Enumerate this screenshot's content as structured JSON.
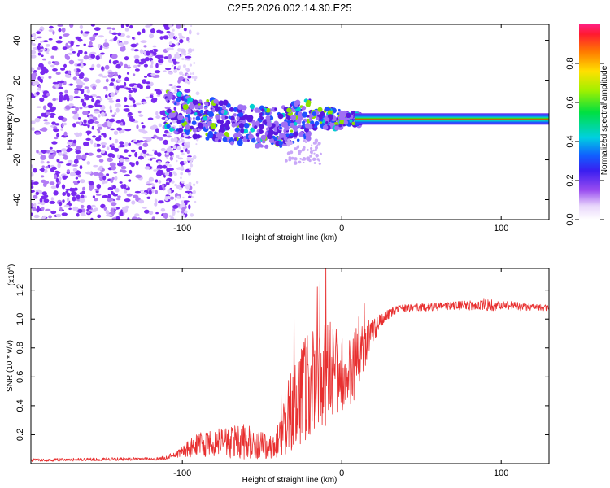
{
  "figure": {
    "title": "C2E5.2026.002.14.30.E25",
    "colors": {
      "spectrogram_base": "#7a29f0",
      "snr_line": "#e83030"
    }
  },
  "chart_data": [
    {
      "type": "heatmap",
      "title": "C2E5.2026.002.14.30.E25",
      "xlabel": "Height of straight line (km)",
      "ylabel": "Frequency (Hz)",
      "xlim": [
        -195,
        130
      ],
      "ylim": [
        -50,
        48
      ],
      "x_ticks": [
        -100,
        0,
        100
      ],
      "y_ticks": [
        -40,
        -20,
        0,
        20,
        40
      ],
      "colorbar": {
        "label": "Normalized spectral amplitude",
        "range": [
          0,
          1
        ],
        "ticks": [
          "0.0",
          "0.2",
          "0.4",
          "0.6",
          "0.8"
        ],
        "tick_values": [
          0,
          0.2,
          0.4,
          0.6,
          0.8
        ]
      },
      "features": {
        "noise_region_x": [
          -195,
          -105
        ],
        "signal_track": [
          {
            "x": -110,
            "y": 5
          },
          {
            "x": -95,
            "y": 2
          },
          {
            "x": -80,
            "y": 0
          },
          {
            "x": -60,
            "y": -3
          },
          {
            "x": -40,
            "y": -4
          },
          {
            "x": -25,
            "y": 0
          },
          {
            "x": -10,
            "y": 1
          },
          {
            "x": 0,
            "y": 0.5
          },
          {
            "x": 10,
            "y": 0.5
          },
          {
            "x": 130,
            "y": 0.5
          }
        ]
      }
    },
    {
      "type": "line",
      "xlabel": "Height of straight line (km)",
      "ylabel": "SNR (10 * v/v)",
      "y_scale_label": "(x10",
      "y_scale_exponent": "4",
      "y_scale_suffix": ")",
      "xlim": [
        -195,
        130
      ],
      "ylim": [
        0,
        1.35
      ],
      "x_ticks": [
        -100,
        0,
        100
      ],
      "y_ticks": [
        "0.2",
        "0.4",
        "0.6",
        "0.8",
        "1.0",
        "1.2"
      ],
      "y_tick_values": [
        0.2,
        0.4,
        0.6,
        0.8,
        1.0,
        1.2
      ],
      "envelope": [
        {
          "x": -195,
          "y": 0.02,
          "spread": 0.015
        },
        {
          "x": -115,
          "y": 0.03,
          "spread": 0.015
        },
        {
          "x": -105,
          "y": 0.05,
          "spread": 0.03
        },
        {
          "x": -90,
          "y": 0.1,
          "spread": 0.12
        },
        {
          "x": -60,
          "y": 0.1,
          "spread": 0.18
        },
        {
          "x": -42,
          "y": 0.08,
          "spread": 0.1
        },
        {
          "x": -35,
          "y": 0.2,
          "spread": 0.35
        },
        {
          "x": -25,
          "y": 0.35,
          "spread": 0.5
        },
        {
          "x": -15,
          "y": 0.45,
          "spread": 0.55
        },
        {
          "x": -5,
          "y": 0.5,
          "spread": 0.45
        },
        {
          "x": 10,
          "y": 0.6,
          "spread": 0.35
        },
        {
          "x": 18,
          "y": 0.85,
          "spread": 0.15
        },
        {
          "x": 25,
          "y": 0.98,
          "spread": 0.06
        },
        {
          "x": 35,
          "y": 1.06,
          "spread": 0.04
        },
        {
          "x": 70,
          "y": 1.08,
          "spread": 0.04
        },
        {
          "x": 90,
          "y": 1.08,
          "spread": 0.06
        },
        {
          "x": 130,
          "y": 1.07,
          "spread": 0.03
        }
      ]
    }
  ]
}
